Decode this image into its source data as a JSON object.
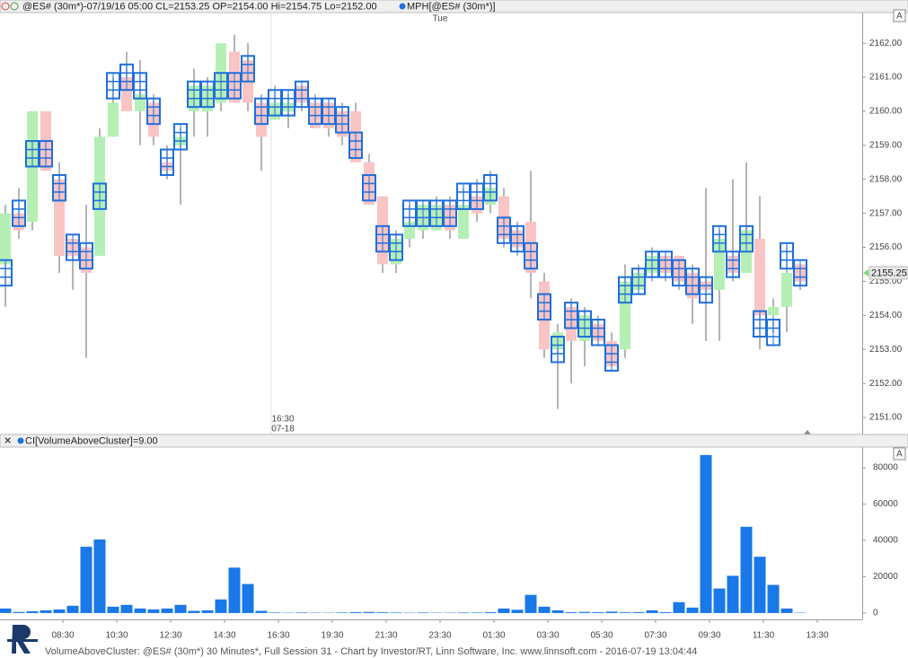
{
  "chart_data": [
    {
      "type": "candlestick",
      "header": "@ES# (30m*)-07/19/16 05:00 CL=2153.25 OP=2154.00 Hi=2154.75 Lo=2152.00",
      "indicator": "MPH[@ES# (30m*)]",
      "day_label": "Tue",
      "session_label": [
        "16:30",
        "07-18"
      ],
      "autoscale": "A",
      "ylim": [
        2150.5,
        2162.9
      ],
      "yticks": [
        {
          "value": 2151,
          "label": "2151.00"
        },
        {
          "value": 2152,
          "label": "2152.00"
        },
        {
          "value": 2153,
          "label": "2153.00"
        },
        {
          "value": 2154,
          "label": "2154.00"
        },
        {
          "value": 2155,
          "label": "2155.00"
        },
        {
          "value": 2156,
          "label": "2156.00"
        },
        {
          "value": 2157,
          "label": "2157.00"
        },
        {
          "value": 2158,
          "label": "2158.00"
        },
        {
          "value": 2159,
          "label": "2159.00"
        },
        {
          "value": 2160,
          "label": "2160.00"
        },
        {
          "value": 2161,
          "label": "2161.00"
        },
        {
          "value": 2162,
          "label": "2162.00"
        }
      ],
      "ohlc": [
        [
          2155.5,
          2157.25,
          2154.25,
          2157
        ],
        [
          2157,
          2157.75,
          2156.25,
          2156.5
        ],
        [
          2156.75,
          2160,
          2156.5,
          2160
        ],
        [
          2160,
          2160,
          2158.25,
          2158.25
        ],
        [
          2158,
          2158.5,
          2155.25,
          2155.75
        ],
        [
          2156.25,
          2156.25,
          2154.75,
          2155.75
        ],
        [
          2156,
          2157.25,
          2152.75,
          2155.25
        ],
        [
          2155.75,
          2159.5,
          2155.75,
          2159.25
        ],
        [
          2159.25,
          2161,
          2159.25,
          2160.25
        ],
        [
          2161,
          2161.75,
          2160,
          2160
        ],
        [
          2160,
          2161.5,
          2159,
          2160.5
        ],
        [
          2160.25,
          2160.5,
          2159,
          2159.25
        ],
        [
          2158.5,
          2159,
          2158,
          2158.25
        ],
        [
          2159,
          2159.5,
          2157.25,
          2159.25
        ],
        [
          2160,
          2161.25,
          2159.25,
          2160.75
        ],
        [
          2160,
          2161,
          2159.25,
          2160.75
        ],
        [
          2160.25,
          2162,
          2160,
          2162
        ],
        [
          2161.75,
          2162.25,
          2160.25,
          2160.25
        ],
        [
          2161.5,
          2162,
          2160,
          2160.25
        ],
        [
          2160.25,
          2160.5,
          2158.25,
          2159.25
        ],
        [
          2159.75,
          2160.75,
          2159.75,
          2160.25
        ],
        [
          2160,
          2160.5,
          2159.5,
          2160.25
        ],
        [
          2160.75,
          2160.75,
          2160,
          2160.25
        ],
        [
          2160.25,
          2160.5,
          2159.5,
          2159.5
        ],
        [
          2160.25,
          2160.25,
          2159.25,
          2159.5
        ],
        [
          2160,
          2160.25,
          2159,
          2159.25
        ],
        [
          2160,
          2160.25,
          2158.5,
          2158.5
        ],
        [
          2158.5,
          2158.75,
          2157.25,
          2157.25
        ],
        [
          2157.5,
          2157.5,
          2155.25,
          2155.5
        ],
        [
          2155.5,
          2156.5,
          2155.25,
          2156.25
        ],
        [
          2156.25,
          2157.25,
          2156,
          2156.75
        ],
        [
          2156.5,
          2157.25,
          2156.25,
          2157.25
        ],
        [
          2156.5,
          2157.5,
          2156.5,
          2157.25
        ],
        [
          2157.25,
          2157.5,
          2156.25,
          2156.5
        ],
        [
          2156.25,
          2157.75,
          2156.25,
          2157.25
        ],
        [
          2157.5,
          2158,
          2156.75,
          2157
        ],
        [
          2157.25,
          2158.25,
          2157,
          2157.75
        ],
        [
          2157.5,
          2157.75,
          2156,
          2156.25
        ],
        [
          2156.5,
          2156.75,
          2155.75,
          2156
        ],
        [
          2156.75,
          2158.25,
          2154.5,
          2155.25
        ],
        [
          2155,
          2155.25,
          2152.75,
          2153
        ],
        [
          2153,
          2153.75,
          2151.25,
          2153.5
        ],
        [
          2154.25,
          2154.5,
          2152,
          2153.25
        ],
        [
          2153.25,
          2154.25,
          2152.5,
          2154
        ],
        [
          2153.75,
          2154,
          2153.25,
          2153.25
        ],
        [
          2153.25,
          2153.5,
          2152.5,
          2152.5
        ],
        [
          2153,
          2155.5,
          2152.75,
          2155
        ],
        [
          2154.75,
          2155.5,
          2154.75,
          2155.25
        ],
        [
          2155.25,
          2156,
          2155,
          2155.75
        ],
        [
          2155.75,
          2155.75,
          2155,
          2155.25
        ],
        [
          2155.75,
          2155.75,
          2154.75,
          2155
        ],
        [
          2155.25,
          2155.5,
          2153.75,
          2154.5
        ],
        [
          2155,
          2157.75,
          2153.25,
          2154.75
        ],
        [
          2154.75,
          2156.5,
          2153.25,
          2156.25
        ],
        [
          2155.75,
          2158,
          2155,
          2155.25
        ],
        [
          2155.25,
          2158.5,
          2155.25,
          2156.5
        ],
        [
          2156.25,
          2157.5,
          2153,
          2154
        ],
        [
          2154,
          2154.5,
          2153.5,
          2154.25
        ],
        [
          2154.25,
          2156,
          2153.5,
          2155.25
        ],
        [
          2155.5,
          2155.5,
          2154.75,
          2155
        ],
        null
      ],
      "clusters": [
        2155.25,
        2157,
        2158.75,
        2158.75,
        2157.75,
        2156,
        2155.75,
        2157.5,
        2160.75,
        2161,
        2160.75,
        2160,
        2158.5,
        2159.25,
        2160.5,
        2160.5,
        2160.75,
        2160.75,
        2161.25,
        2160,
        2160.25,
        2160.25,
        2160.5,
        2160,
        2160,
        2159.75,
        2159,
        2157.75,
        2156.25,
        2156,
        2157,
        2157,
        2157,
        2157,
        2157.5,
        2157.5,
        2157.75,
        2156.5,
        2156.25,
        2155.75,
        2154.25,
        2153,
        2154,
        2153.75,
        2153.5,
        2152.75,
        2154.75,
        2155,
        2155.5,
        2155.5,
        2155.25,
        2155,
        2154.75,
        2156.25,
        2155.5,
        2156.25,
        2153.75,
        2153.5,
        2155.75,
        2155.25,
        null
      ],
      "last_price": 2155.25,
      "up_color": "#b5efb5",
      "down_color": "#f8c4c4",
      "wick_color": "#9a9a9a",
      "cluster_color": "#1f6fdc"
    },
    {
      "type": "bar",
      "header": "CI[VolumeAboveCluster]=9.00",
      "autoscale": "A",
      "categories": [
        null,
        null,
        null,
        null,
        "08:30",
        null,
        null,
        null,
        "10:30",
        null,
        null,
        null,
        "12:30",
        null,
        null,
        null,
        "14:30",
        null,
        null,
        null,
        "16:30",
        null,
        null,
        null,
        "19:30",
        null,
        null,
        null,
        "21:30",
        null,
        null,
        null,
        "23:30",
        null,
        null,
        null,
        "01:30",
        null,
        null,
        null,
        "03:30",
        null,
        null,
        null,
        "05:30",
        null,
        null,
        null,
        "07:30",
        null,
        null,
        null,
        "09:30",
        null,
        null,
        null,
        "11:30",
        null,
        null,
        null,
        "13:30"
      ],
      "values": [
        2500,
        600,
        1000,
        1500,
        2000,
        4000,
        36500,
        40500,
        3500,
        4500,
        2500,
        2000,
        2500,
        4500,
        1200,
        1500,
        7500,
        25000,
        16000,
        1200,
        300,
        200,
        300,
        200,
        200,
        300,
        500,
        600,
        400,
        300,
        200,
        300,
        200,
        200,
        300,
        300,
        500,
        2500,
        1800,
        10000,
        3500,
        1500,
        500,
        600,
        500,
        800,
        400,
        500,
        1500,
        500,
        6000,
        3000,
        87000,
        13500,
        20500,
        47500,
        31000,
        15500,
        2500,
        200,
        null
      ],
      "color": "#1a78e8",
      "ylim": [
        -3500,
        91400
      ],
      "yticks": [
        0,
        20000,
        40000,
        60000,
        80000
      ]
    }
  ],
  "footer": "VolumeAboveCluster: @ES# (30m*) 30 Minutes*, Full Session 31 - Chart by Investor/RT, Linn Software, Inc. www.linnsoft.com - 2016-07-19 13:04:44"
}
